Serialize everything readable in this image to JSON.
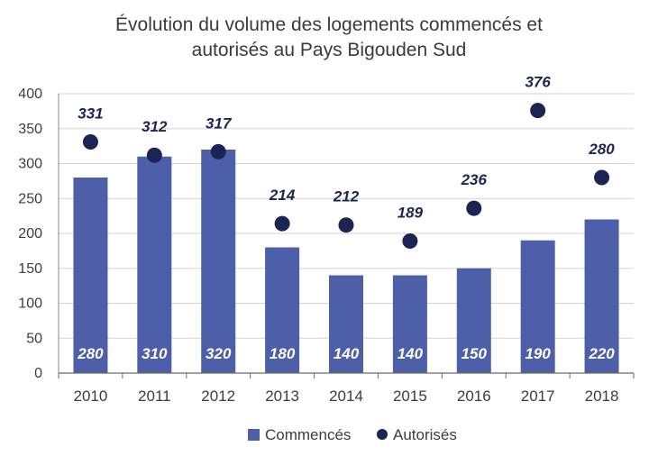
{
  "chart_data": {
    "type": "bar",
    "title_lines": [
      "Évolution du volume des logements commencés et",
      "autorisés au Pays Bigouden Sud"
    ],
    "categories": [
      "2010",
      "2011",
      "2012",
      "2013",
      "2014",
      "2015",
      "2016",
      "2017",
      "2018"
    ],
    "series": [
      {
        "name": "Commencés",
        "type": "bar",
        "color": "#4d5fa8",
        "values": [
          280,
          310,
          320,
          180,
          140,
          140,
          150,
          190,
          220
        ]
      },
      {
        "name": "Autorisés",
        "type": "scatter",
        "color": "#1c2453",
        "values": [
          331,
          312,
          317,
          214,
          212,
          189,
          236,
          376,
          280
        ]
      }
    ],
    "ylim": [
      0,
      400
    ],
    "yticks": [
      0,
      50,
      100,
      150,
      200,
      250,
      300,
      350,
      400
    ],
    "grid": true,
    "legend_position": "bottom"
  }
}
